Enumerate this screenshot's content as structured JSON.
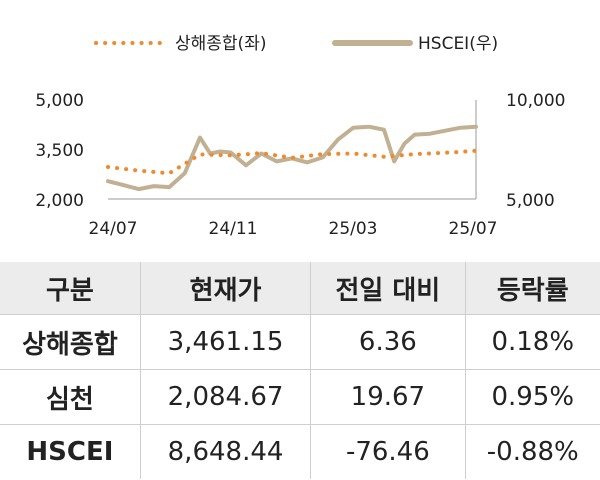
{
  "chart_data": {
    "type": "line",
    "x_ticks": [
      "24/07",
      "24/11",
      "25/03",
      "25/07"
    ],
    "y_left_ticks": [
      "5,000",
      "3,500",
      "2,000"
    ],
    "y_right_ticks": [
      "10,000",
      "5,000"
    ],
    "y_left_range": [
      2000,
      5000
    ],
    "y_right_range": [
      5000,
      10000
    ],
    "legend_position": "top",
    "series": [
      {
        "name": "상해종합(좌)",
        "axis": "left",
        "style": "dotted",
        "color": "#f08a2c",
        "x": [
          "24/07",
          "24/08",
          "24/09",
          "24/10",
          "24/11",
          "24/12",
          "25/01",
          "25/02",
          "25/03",
          "25/04",
          "25/05",
          "25/06",
          "25/07"
        ],
        "values": [
          2970,
          2860,
          2780,
          3350,
          3320,
          3390,
          3250,
          3360,
          3380,
          3280,
          3360,
          3400,
          3460
        ]
      },
      {
        "name": "HSCEI(우)",
        "axis": "right",
        "style": "solid",
        "color": "#c2b092",
        "x": [
          "24/07",
          "24/07",
          "24/08",
          "24/08",
          "24/09",
          "24/09",
          "24/10",
          "24/10",
          "24/10",
          "24/11",
          "24/11",
          "24/12",
          "24/12",
          "25/01",
          "25/01",
          "25/02",
          "25/02",
          "25/03",
          "25/03",
          "25/04",
          "25/04",
          "25/04",
          "25/05",
          "25/05",
          "25/06",
          "25/06",
          "25/07"
        ],
        "values": [
          5900,
          5700,
          5500,
          5650,
          5600,
          6300,
          8100,
          7300,
          7400,
          7350,
          6700,
          7300,
          6900,
          7050,
          6850,
          7100,
          8000,
          8600,
          8650,
          8500,
          6900,
          7800,
          8250,
          8300,
          8450,
          8600,
          8650
        ]
      }
    ]
  },
  "table": {
    "headers": [
      "구분",
      "현재가",
      "전일 대비",
      "등락률"
    ],
    "rows": [
      {
        "name": "상해종합",
        "price": "3,461.15",
        "change": "6.36",
        "rate": "0.18%"
      },
      {
        "name": "심천",
        "price": "2,084.67",
        "change": "19.67",
        "rate": "0.95%"
      },
      {
        "name": "HSCEI",
        "price": "8,648.44",
        "change": "-76.46",
        "rate": "-0.88%"
      }
    ]
  }
}
